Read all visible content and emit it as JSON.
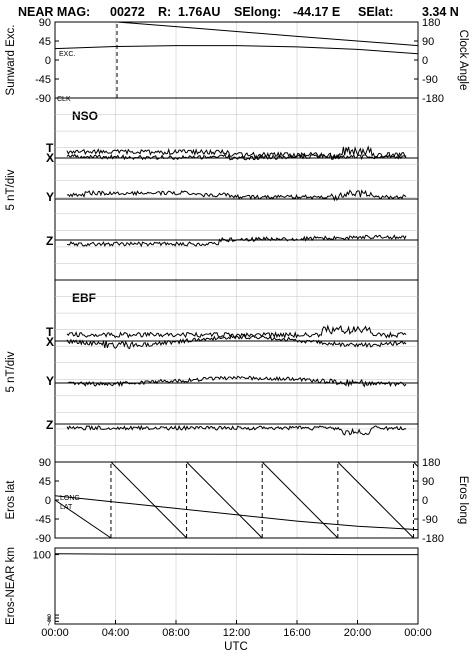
{
  "title": {
    "mission": "NEAR MAG:",
    "day": "00272",
    "r_label": "R:",
    "r_value": "1.76AU",
    "selong_label": "SElong:",
    "selong_value": "-44.17 E",
    "selat_label": "SElat:",
    "selat_value": "3.34 N"
  },
  "chart_data": {
    "type": "line",
    "xlabel": "UTC",
    "x_ticks": [
      "00:00",
      "04:00",
      "08:00",
      "12:00",
      "16:00",
      "20:00",
      "00:00"
    ],
    "x_range_hours": [
      0,
      24
    ],
    "panels": [
      {
        "id": "sunward",
        "ylabel": "Sunward Exc.",
        "ylabel_right": "Clock Angle",
        "ylim": [
          -90,
          90
        ],
        "yticks": [
          "90",
          "45",
          "0",
          "-45",
          "-90"
        ],
        "ylim_right": [
          -180,
          180
        ],
        "yticks_right": [
          "180",
          "90",
          "0",
          "-90",
          "-180"
        ],
        "annotations": [
          "EXC.",
          "CLK"
        ],
        "series": [
          {
            "label": "EXC.",
            "axis": "left",
            "x": [
              0,
              4,
              8,
              12,
              16,
              20,
              24
            ],
            "y": [
              27,
              32,
              34,
              34,
              31,
              25,
              15
            ]
          },
          {
            "label": "CLK",
            "axis": "right",
            "style": "dashed-jump",
            "x": [
              0,
              4.1,
              4.1,
              8,
              12,
              16,
              20,
              24
            ],
            "y": [
              -180,
              -180,
              180,
              158,
              135,
              112,
              90,
              68
            ]
          }
        ]
      },
      {
        "id": "nso",
        "label": "NSO",
        "ylabel": "5 nT/div",
        "components": [
          "T",
          "X",
          "Y",
          "Z"
        ]
      },
      {
        "id": "ebf",
        "label": "EBF",
        "ylabel": "5 nT/div",
        "components": [
          "T",
          "X",
          "Y",
          "Z"
        ]
      },
      {
        "id": "eros_latlong",
        "ylabel": "Eros lat",
        "ylabel_right": "Eros long",
        "ylim": [
          -90,
          90
        ],
        "yticks": [
          "90",
          "45",
          "0",
          "-45",
          "-90"
        ],
        "ylim_right": [
          -180,
          180
        ],
        "yticks_right": [
          "180",
          "90",
          "0",
          "-90",
          "-180"
        ],
        "annotations": [
          "LONG",
          "LAT"
        ],
        "series": [
          {
            "label": "LAT",
            "axis": "left",
            "x": [
              0,
              4,
              8,
              12,
              16,
              20,
              24
            ],
            "y": [
              10,
              -5,
              -20,
              -35,
              -50,
              -62,
              -70
            ]
          },
          {
            "label": "LONG",
            "axis": "right",
            "style": "sawtooth",
            "wraps_at_hours": [
              3.7,
              8.7,
              13.7,
              18.7,
              23.7
            ],
            "x": [
              0,
              3.7,
              8.7,
              13.7,
              18.7,
              23.7,
              24
            ],
            "y": [
              0,
              -180,
              -180,
              -180,
              -180,
              -180,
              130
            ]
          }
        ]
      },
      {
        "id": "eros_distance",
        "ylabel": "Eros-NEAR km",
        "yscale": "log",
        "yticks": [
          "100",
          "9",
          "8",
          "7"
        ],
        "series": [
          {
            "label": "distance",
            "x": [
              0,
              4,
              8,
              12,
              16,
              20,
              24
            ],
            "y": [
              103,
              102,
              102,
              101,
              101,
              100,
              100
            ]
          }
        ]
      }
    ]
  }
}
